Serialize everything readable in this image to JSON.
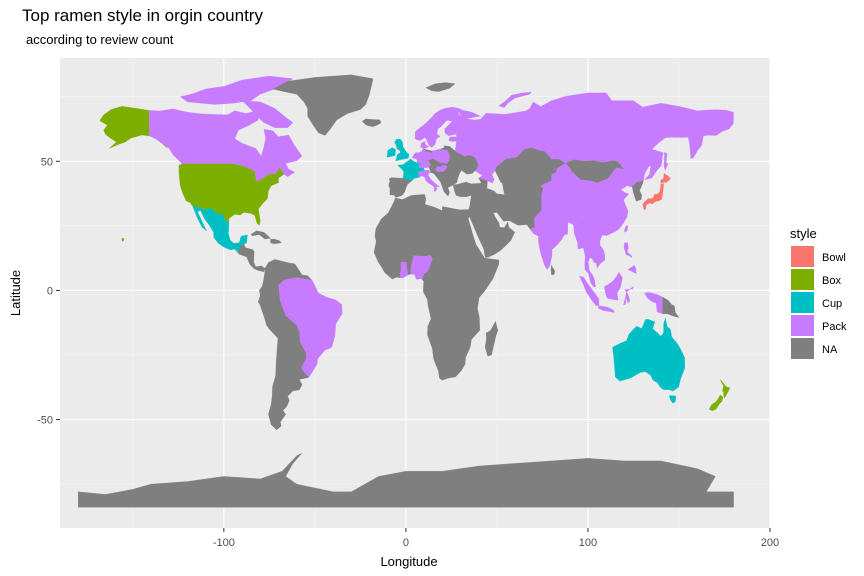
{
  "chart_data": {
    "type": "choropleth-map",
    "title": "Top ramen style in orgin country",
    "subtitle": "according to review count",
    "xlabel": "Longitude",
    "ylabel": "Latitude",
    "xlim": [
      -190,
      200
    ],
    "ylim": [
      -92,
      90
    ],
    "x_ticks": [
      -100,
      0,
      100,
      200
    ],
    "x_tick_labels": [
      "-100",
      "0",
      "100",
      "200"
    ],
    "y_ticks": [
      -50,
      0,
      50
    ],
    "y_tick_labels": [
      "-50",
      "0",
      "50"
    ],
    "grid": true,
    "legend_position": "right",
    "legend": {
      "title": "style",
      "entries": [
        {
          "label": "Bowl",
          "color": "#F8766D"
        },
        {
          "label": "Box",
          "color": "#7CAE00"
        },
        {
          "label": "Cup",
          "color": "#00BFC4"
        },
        {
          "label": "Pack",
          "color": "#C77CFF"
        },
        {
          "label": "NA",
          "color": "#7F7F7F"
        }
      ]
    },
    "regions": [
      {
        "region": "Japan",
        "style": "Bowl"
      },
      {
        "region": "USA",
        "style": "Box"
      },
      {
        "region": "Alaska (USA)",
        "style": "Box"
      },
      {
        "region": "Hawaii (USA)",
        "style": "Box"
      },
      {
        "region": "New Zealand",
        "style": "Box"
      },
      {
        "region": "Mexico",
        "style": "Cup"
      },
      {
        "region": "UK",
        "style": "Cup"
      },
      {
        "region": "France",
        "style": "Cup"
      },
      {
        "region": "Switzerland",
        "style": "Cup"
      },
      {
        "region": "Australia",
        "style": "Cup"
      },
      {
        "region": "Canada",
        "style": "Pack"
      },
      {
        "region": "Brazil",
        "style": "Pack"
      },
      {
        "region": "Russia",
        "style": "Pack"
      },
      {
        "region": "China",
        "style": "Pack"
      },
      {
        "region": "India",
        "style": "Pack"
      },
      {
        "region": "Scandinavia",
        "style": "Pack"
      },
      {
        "region": "Germany",
        "style": "Pack"
      },
      {
        "region": "Poland",
        "style": "Pack"
      },
      {
        "region": "Hungary",
        "style": "Pack"
      },
      {
        "region": "Italy",
        "style": "Pack"
      },
      {
        "region": "Netherlands",
        "style": "Pack"
      },
      {
        "region": "Estonia",
        "style": "Pack"
      },
      {
        "region": "Nigeria",
        "style": "Pack"
      },
      {
        "region": "Ghana",
        "style": "Pack"
      },
      {
        "region": "Southeast Asia",
        "style": "Pack"
      },
      {
        "region": "Indonesia",
        "style": "Pack"
      },
      {
        "region": "Philippines",
        "style": "Pack"
      },
      {
        "region": "Taiwan",
        "style": "Pack"
      },
      {
        "region": "Greenland",
        "style": "NA"
      },
      {
        "region": "South America (rest)",
        "style": "NA"
      },
      {
        "region": "Central America",
        "style": "NA"
      },
      {
        "region": "Caribbean",
        "style": "NA"
      },
      {
        "region": "Africa",
        "style": "NA"
      },
      {
        "region": "Madagascar",
        "style": "NA"
      },
      {
        "region": "Middle East",
        "style": "NA"
      },
      {
        "region": "Iberia",
        "style": "NA"
      },
      {
        "region": "Eastern Europe",
        "style": "NA"
      },
      {
        "region": "Central Asia",
        "style": "NA"
      },
      {
        "region": "Mongolia",
        "style": "NA"
      },
      {
        "region": "Korea",
        "style": "NA"
      },
      {
        "region": "Iceland",
        "style": "NA"
      },
      {
        "region": "Svalbard",
        "style": "NA"
      },
      {
        "region": "Papua New Guinea",
        "style": "NA"
      },
      {
        "region": "Antarctica",
        "style": "NA"
      }
    ]
  }
}
